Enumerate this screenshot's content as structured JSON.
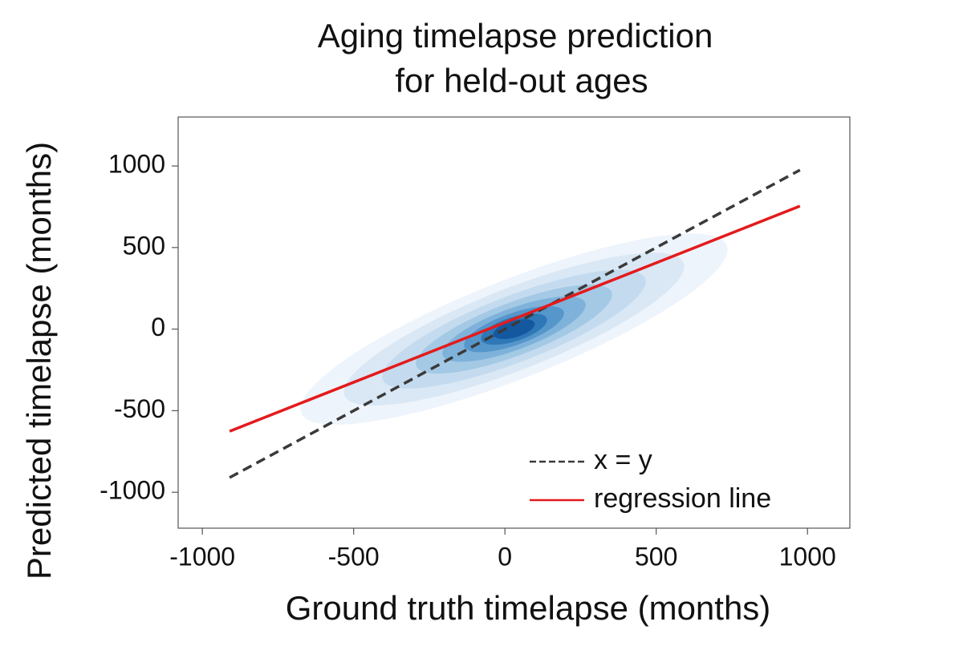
{
  "chart_data": {
    "type": "density-with-lines",
    "title": [
      "Aging timelapse prediction",
      "for held-out ages"
    ],
    "xlabel": "Ground truth timelapse (months)",
    "ylabel": "Predicted timelapse (months)",
    "xlim": [
      -1080,
      1140
    ],
    "ylim": [
      -1220,
      1300
    ],
    "xticks": [
      -1000,
      -500,
      0,
      500,
      1000
    ],
    "yticks": [
      -1000,
      -500,
      0,
      500,
      1000
    ],
    "legend": "lower right",
    "density": {
      "center": [
        30,
        0
      ],
      "slope": 0.8,
      "levels": [
        {
          "a": 880,
          "b": 260,
          "color": "#eef4fb"
        },
        {
          "a": 700,
          "b": 215,
          "color": "#dae8f5"
        },
        {
          "a": 540,
          "b": 175,
          "color": "#c4dbef"
        },
        {
          "a": 400,
          "b": 140,
          "color": "#a3c9e5"
        },
        {
          "a": 290,
          "b": 110,
          "color": "#7fb2da"
        },
        {
          "a": 200,
          "b": 85,
          "color": "#5596cb"
        },
        {
          "a": 130,
          "b": 65,
          "color": "#2f78b7"
        },
        {
          "a": 80,
          "b": 45,
          "color": "#1458a0"
        }
      ]
    },
    "series": [
      {
        "name": "x = y",
        "color": "#3a3a3a",
        "dash": true,
        "x": [
          -910,
          975
        ],
        "values": [
          -910,
          975
        ]
      },
      {
        "name": "regression line",
        "color": "#e41a1c",
        "dash": false,
        "x": [
          -910,
          975
        ],
        "values": [
          -626,
          754
        ]
      }
    ]
  }
}
